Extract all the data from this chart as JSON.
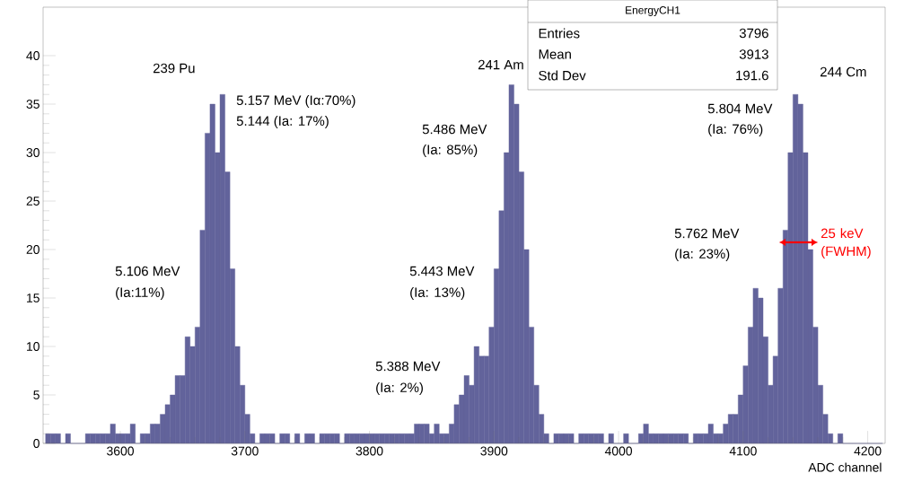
{
  "chart_data": {
    "type": "histogram",
    "xlabel": "ADC channel",
    "color": "#62639b",
    "bins": [
      3540,
      3544,
      3548,
      3552,
      3556,
      3560,
      3564,
      3568,
      3572,
      3576,
      3580,
      3584,
      3588,
      3592,
      3596,
      3600,
      3604,
      3608,
      3612,
      3616,
      3620,
      3624,
      3628,
      3632,
      3636,
      3640,
      3644,
      3648,
      3652,
      3656,
      3660,
      3664,
      3668,
      3672,
      3676,
      3680,
      3684,
      3688,
      3692,
      3696,
      3700,
      3704,
      3708,
      3712,
      3716,
      3720,
      3724,
      3728,
      3732,
      3736,
      3740,
      3744,
      3748,
      3752,
      3756,
      3760,
      3764,
      3768,
      3772,
      3776,
      3780,
      3784,
      3788,
      3792,
      3796,
      3800,
      3804,
      3808,
      3812,
      3816,
      3820,
      3824,
      3828,
      3832,
      3836,
      3840,
      3844,
      3848,
      3852,
      3856,
      3860,
      3864,
      3868,
      3872,
      3876,
      3880,
      3884,
      3888,
      3892,
      3896,
      3900,
      3904,
      3908,
      3912,
      3916,
      3920,
      3924,
      3928,
      3932,
      3936,
      3940,
      3944,
      3948,
      3952,
      3956,
      3960,
      3964,
      3968,
      3972,
      3976,
      3980,
      3984,
      3988,
      3992,
      3996,
      4000,
      4004,
      4008,
      4012,
      4016,
      4020,
      4024,
      4028,
      4032,
      4036,
      4040,
      4044,
      4048,
      4052,
      4056,
      4060,
      4064,
      4068,
      4072,
      4076,
      4080,
      4084,
      4088,
      4092,
      4096,
      4100,
      4104,
      4108,
      4112,
      4116,
      4120,
      4124,
      4128,
      4132,
      4136,
      4140,
      4144,
      4148,
      4152,
      4156,
      4160,
      4164,
      4168,
      4172,
      4176,
      4180,
      4184,
      4188,
      4192,
      4196,
      4200,
      4204,
      4208,
      4212
    ],
    "values": [
      1,
      1,
      1,
      0,
      1,
      0,
      0,
      0,
      1,
      1,
      1,
      1,
      1,
      2,
      1,
      1,
      1,
      2,
      0,
      1,
      1,
      2,
      2,
      3,
      4,
      5,
      7,
      7,
      11,
      10,
      12,
      22,
      32,
      35,
      30,
      36,
      28,
      18,
      10,
      6,
      3,
      1,
      0,
      1,
      1,
      1,
      0,
      1,
      1,
      0,
      1,
      0,
      1,
      1,
      0,
      1,
      1,
      1,
      1,
      0,
      1,
      1,
      1,
      1,
      1,
      1,
      1,
      1,
      1,
      1,
      1,
      1,
      1,
      1,
      2,
      2,
      2,
      1,
      2,
      1,
      1,
      2,
      4,
      5,
      7,
      6,
      10,
      9,
      9,
      12,
      18,
      24,
      30,
      37,
      35,
      28,
      20,
      12,
      6,
      3,
      1,
      0,
      1,
      1,
      1,
      1,
      0,
      1,
      1,
      1,
      1,
      1,
      0,
      1,
      0,
      0,
      1,
      0,
      0,
      1,
      2,
      1,
      1,
      1,
      1,
      1,
      1,
      1,
      1,
      0,
      1,
      1,
      1,
      2,
      1,
      1,
      2,
      3,
      3,
      5,
      8,
      12,
      16,
      15,
      11,
      6,
      9,
      16,
      22,
      30,
      36,
      35,
      30,
      20,
      12,
      6,
      3,
      1,
      0,
      1,
      0,
      0,
      0,
      0,
      0,
      0,
      0,
      0
    ],
    "xlim": [
      3538,
      4214
    ],
    "ylim": [
      0,
      45
    ],
    "xticks": [
      3600,
      3700,
      3800,
      3900,
      4000,
      4100,
      4200
    ],
    "yticks": [
      0,
      5,
      10,
      15,
      20,
      25,
      30,
      35,
      40
    ],
    "annotations": [
      "239 Pu",
      "5.157 MeV (Iα:70%)",
      "5.144 (Ia: 17%)",
      "5.106 MeV",
      "(Ia:11%)",
      "241 Am",
      "5.486 MeV",
      "(Ia: 85%)",
      "5.443 MeV",
      "(Ia: 13%)",
      "5.388 MeV",
      "(Ia: 2%)",
      "244 Cm",
      "5.804 MeV",
      "(Ia: 76%)",
      "5.762 MeV",
      "(Ia: 23%)",
      "25 keV (FWHM)",
      "EnergyCH1",
      "Entries",
      "3796",
      "Mean",
      "3913",
      "Std Dev",
      "191.6"
    ]
  }
}
